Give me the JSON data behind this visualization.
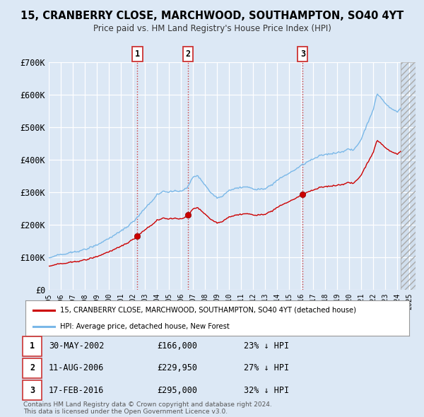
{
  "title": "15, CRANBERRY CLOSE, MARCHWOOD, SOUTHAMPTON, SO40 4YT",
  "subtitle": "Price paid vs. HM Land Registry's House Price Index (HPI)",
  "ylim": [
    0,
    700000
  ],
  "yticks": [
    0,
    100000,
    200000,
    300000,
    400000,
    500000,
    600000,
    700000
  ],
  "ytick_labels": [
    "£0",
    "£100K",
    "£200K",
    "£300K",
    "£400K",
    "£500K",
    "£600K",
    "£700K"
  ],
  "background_color": "#dce8f5",
  "plot_bg_color": "#dce8f5",
  "grid_color": "#ffffff",
  "hpi_color": "#7ab8e8",
  "price_color": "#cc0000",
  "marker_color": "#cc0000",
  "vline_color": "#cc3333",
  "legend_label_price": "15, CRANBERRY CLOSE, MARCHWOOD, SOUTHAMPTON, SO40 4YT (detached house)",
  "legend_label_hpi": "HPI: Average price, detached house, New Forest",
  "transactions": [
    {
      "label": "1",
      "date_x": 2002.37,
      "price": 166000,
      "pct": "23%",
      "date_str": "30-MAY-2002",
      "price_str": "£166,000"
    },
    {
      "label": "2",
      "date_x": 2006.6,
      "price": 229950,
      "pct": "27%",
      "date_str": "11-AUG-2006",
      "price_str": "£229,950"
    },
    {
      "label": "3",
      "date_x": 2016.12,
      "price": 295000,
      "pct": "32%",
      "date_str": "17-FEB-2016",
      "price_str": "£295,000"
    }
  ],
  "copyright": "Contains HM Land Registry data © Crown copyright and database right 2024.\nThis data is licensed under the Open Government Licence v3.0.",
  "xmin": 1995.0,
  "xmax": 2025.5,
  "future_start": 2024.25,
  "xtick_years": [
    1995,
    1996,
    1997,
    1998,
    1999,
    2000,
    2001,
    2002,
    2003,
    2004,
    2005,
    2006,
    2007,
    2008,
    2009,
    2010,
    2011,
    2012,
    2013,
    2014,
    2015,
    2016,
    2017,
    2018,
    2019,
    2020,
    2021,
    2022,
    2023,
    2024,
    2025
  ]
}
